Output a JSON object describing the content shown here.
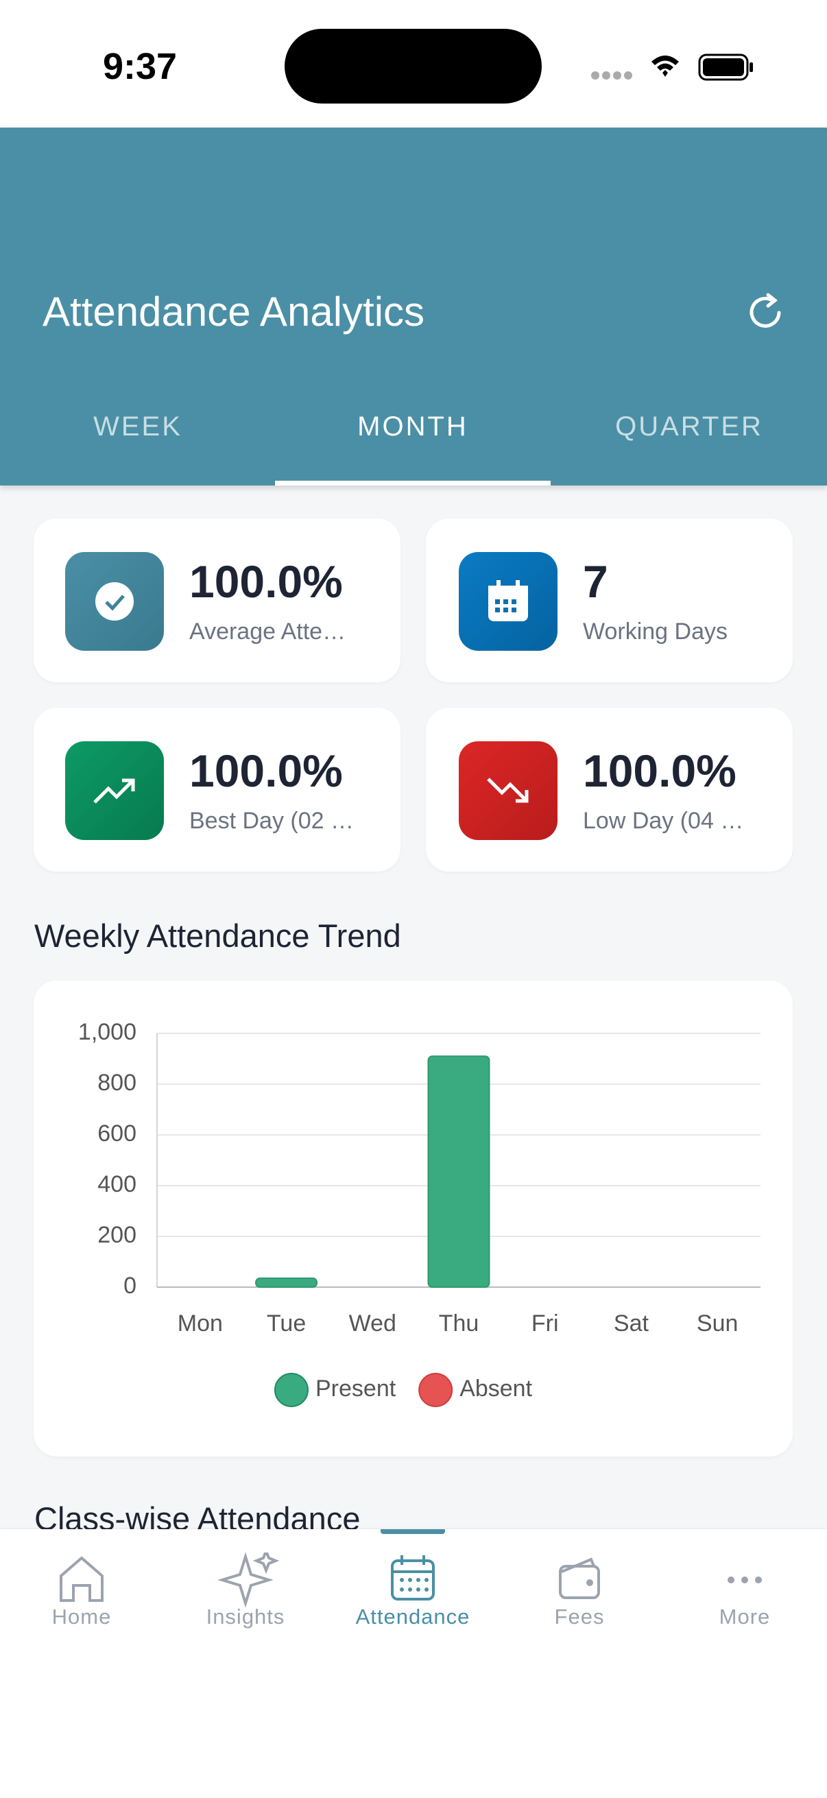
{
  "status_bar": {
    "time": "9:37"
  },
  "header": {
    "title": "Attendance Analytics",
    "tabs": [
      "WEEK",
      "MONTH",
      "QUARTER"
    ]
  },
  "stats": [
    {
      "value": "100.0%",
      "label": "Average Atte…"
    },
    {
      "value": "7",
      "label": "Working Days"
    },
    {
      "value": "100.0%",
      "label": "Best Day (02 …"
    },
    {
      "value": "100.0%",
      "label": "Low Day (04 …"
    }
  ],
  "chart_data": {
    "type": "bar",
    "title": "Weekly Attendance Trend",
    "categories": [
      "Mon",
      "Tue",
      "Wed",
      "Thu",
      "Fri",
      "Sat",
      "Sun"
    ],
    "series": [
      {
        "name": "Present",
        "color": "#3aaa80",
        "values": [
          0,
          35,
          0,
          910,
          0,
          0,
          0
        ]
      },
      {
        "name": "Absent",
        "color": "#e55353",
        "values": [
          0,
          0,
          0,
          0,
          0,
          0,
          0
        ]
      }
    ],
    "ylim": [
      0,
      1000
    ],
    "yticks": [
      0,
      200,
      400,
      600,
      800,
      {
        "value": 1000,
        "label": "1,000"
      }
    ],
    "grid": true
  },
  "next_section": {
    "title": "Class-wise Attendance"
  },
  "nav": [
    "Home",
    "Insights",
    "Attendance",
    "Fees",
    "More"
  ]
}
